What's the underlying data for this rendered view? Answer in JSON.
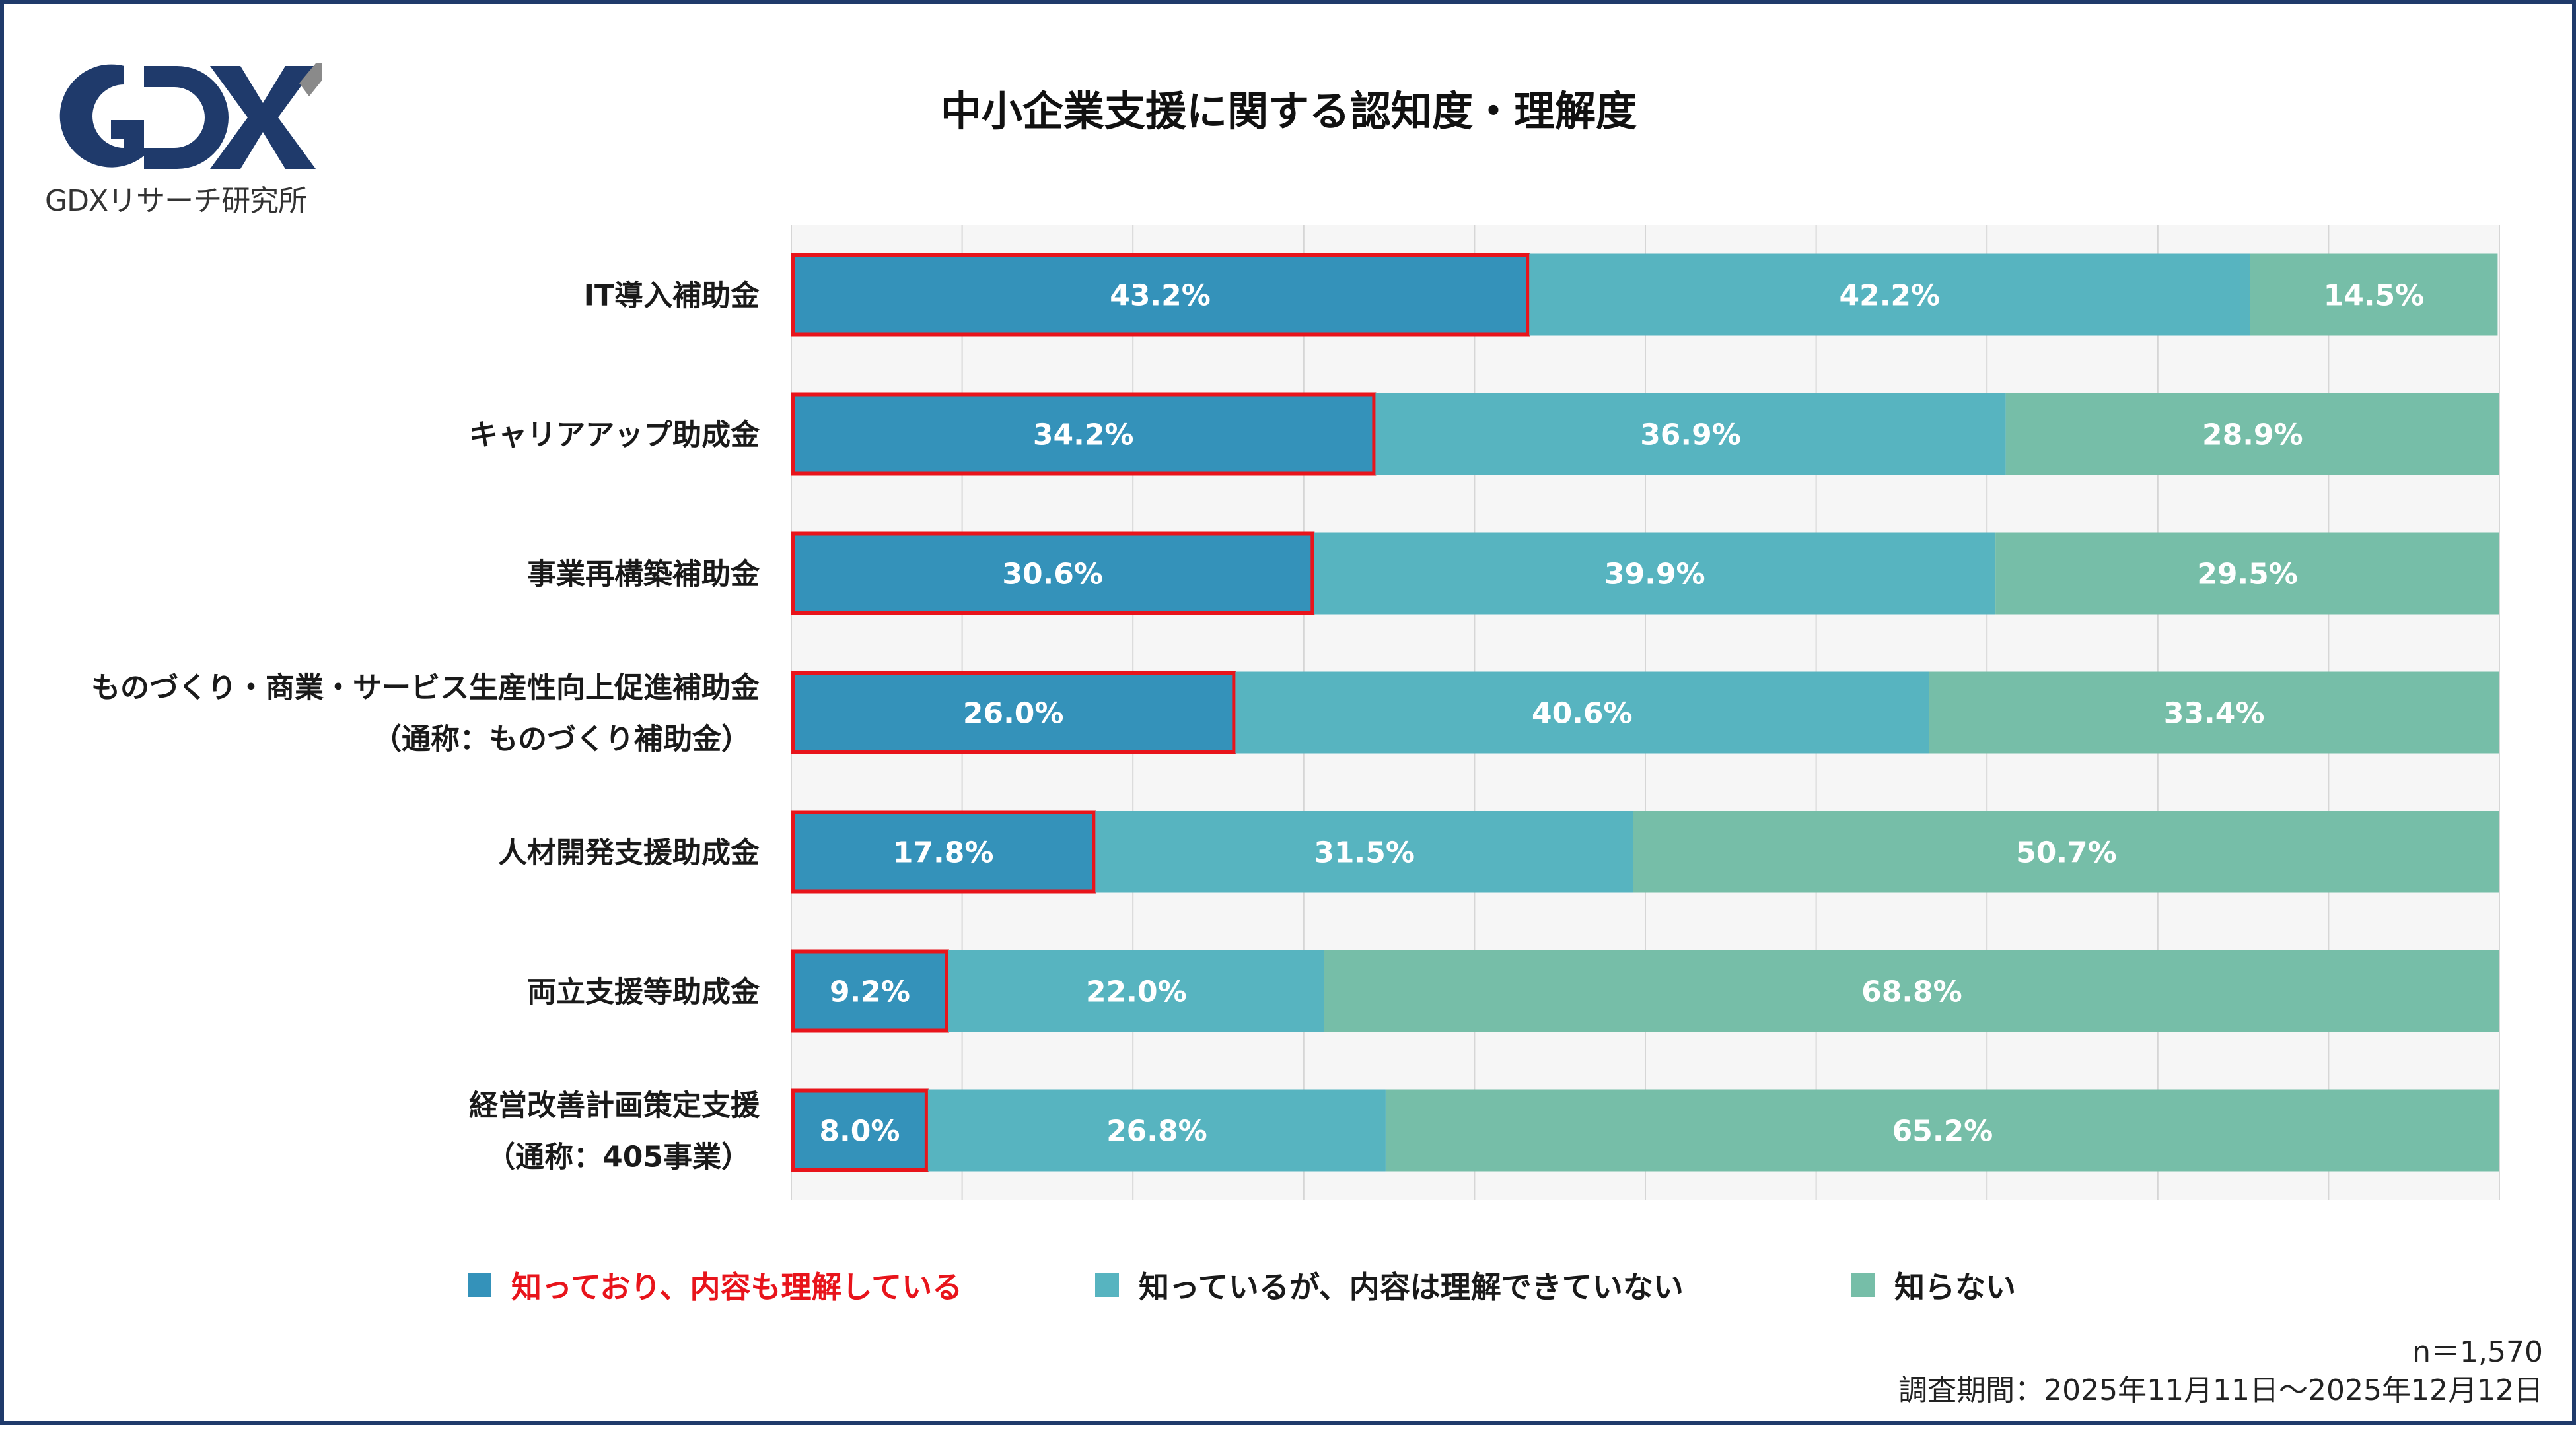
{
  "logo": {
    "mark": "GDX",
    "caption": "GDXリサーチ研究所"
  },
  "chart_data": {
    "type": "bar",
    "orientation": "horizontal",
    "stacked": true,
    "percent": true,
    "title": "中小企業支援に関する認知度・理解度",
    "categories": [
      [
        "IT導入補助金"
      ],
      [
        "キャリアアップ助成金"
      ],
      [
        "事業再構築補助金"
      ],
      [
        "ものづくり・商業・サービス生産性向上促進補助金",
        "（通称：ものづくり補助金）"
      ],
      [
        "人材開発支援助成金"
      ],
      [
        "両立支援等助成金"
      ],
      [
        "経営改善計画策定支援",
        "（通称：405事業）"
      ]
    ],
    "series": [
      {
        "name": "知っており、内容も理解している",
        "color": "#3492ba",
        "highlight": true,
        "values": [
          43.2,
          34.2,
          30.6,
          26.0,
          17.8,
          9.2,
          8.0
        ]
      },
      {
        "name": "知っているが、内容は理解できていない",
        "color": "#57b4c0",
        "highlight": false,
        "values": [
          42.2,
          36.9,
          39.9,
          40.6,
          31.5,
          22.0,
          26.8
        ]
      },
      {
        "name": "知らない",
        "color": "#76bea8",
        "highlight": false,
        "values": [
          14.5,
          28.9,
          29.5,
          33.4,
          50.7,
          68.8,
          65.2
        ]
      }
    ],
    "xlim": [
      0,
      100
    ],
    "grid": true,
    "legend_position": "bottom",
    "highlight_color": "#e8141b"
  },
  "notes": {
    "sample_size": "n＝1,570",
    "period": "調査期間：2025年11月11日～2025年12月12日"
  }
}
